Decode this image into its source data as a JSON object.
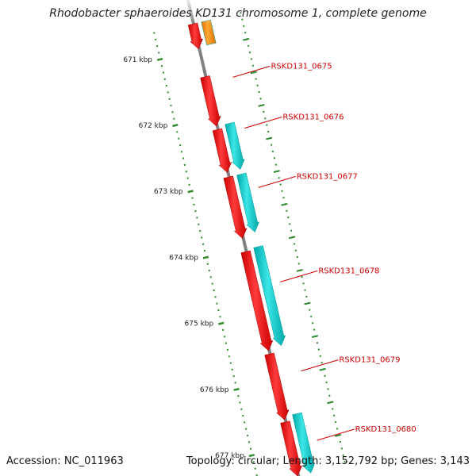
{
  "title": "Rhodobacter sphaeroides KD131 chromosome 1, complete genome",
  "footer": {
    "accession": "Accession: NC_011963",
    "summary": "Topology: circular; Length: 3,152,792 bp; Genes: 3,143"
  },
  "colors": {
    "backbone": "#808080",
    "forward_gene": "#00cccc",
    "reverse_gene": "#ff0000",
    "other_feature": "#ff8c00",
    "tick": "#2e8b2e",
    "label": "#cc0000"
  },
  "map": {
    "kbp_range": [
      670.6,
      677.45
    ],
    "ticks": [
      {
        "kbp": 671,
        "label": "671 kbp"
      },
      {
        "kbp": 672,
        "label": "672 kbp"
      },
      {
        "kbp": 673,
        "label": "673 kbp"
      },
      {
        "kbp": 674,
        "label": "674 kbp"
      },
      {
        "kbp": 675,
        "label": "675 kbp"
      },
      {
        "kbp": 676,
        "label": "676 kbp"
      },
      {
        "kbp": 677,
        "label": "677 kbp"
      }
    ],
    "genes": [
      {
        "id": "gene-a",
        "start_kbp": 670.6,
        "end_kbp": 670.98,
        "track": "reverse",
        "type": "cds"
      },
      {
        "id": "gene-b",
        "start_kbp": 670.6,
        "end_kbp": 670.95,
        "track": "forward",
        "type": "other"
      },
      {
        "id": "RSKD131_0675",
        "start_kbp": 671.4,
        "end_kbp": 672.15,
        "track": "reverse",
        "type": "cds"
      },
      {
        "id": "RSKD131_0676",
        "start_kbp": 672.2,
        "end_kbp": 672.85,
        "track": "reverse",
        "type": "cds"
      },
      {
        "id": "RSKD131_0676f",
        "start_kbp": 672.15,
        "end_kbp": 672.85,
        "track": "forward",
        "type": "cds"
      },
      {
        "id": "RSKD131_0677",
        "start_kbp": 672.92,
        "end_kbp": 673.85,
        "track": "reverse",
        "type": "cds"
      },
      {
        "id": "RSKD131_0677f",
        "start_kbp": 672.92,
        "end_kbp": 673.8,
        "track": "forward",
        "type": "cds"
      },
      {
        "id": "RSKD131_0678",
        "start_kbp": 674.05,
        "end_kbp": 675.55,
        "track": "reverse",
        "type": "cds"
      },
      {
        "id": "RSKD131_0678f",
        "start_kbp": 674.02,
        "end_kbp": 675.52,
        "track": "forward",
        "type": "cds"
      },
      {
        "id": "RSKD131_0679",
        "start_kbp": 675.6,
        "end_kbp": 676.6,
        "track": "reverse",
        "type": "cds"
      },
      {
        "id": "RSKD131_0680",
        "start_kbp": 676.63,
        "end_kbp": 677.45,
        "track": "reverse",
        "type": "cds"
      },
      {
        "id": "RSKD131_0680f",
        "start_kbp": 676.55,
        "end_kbp": 677.45,
        "track": "forward",
        "type": "cds"
      }
    ],
    "labels": [
      {
        "text": "RSKD131_0675",
        "kbp": 671.5
      },
      {
        "text": "RSKD131_0676",
        "kbp": 672.27
      },
      {
        "text": "RSKD131_0677",
        "kbp": 673.17
      },
      {
        "text": "RSKD131_0678",
        "kbp": 674.6
      },
      {
        "text": "RSKD131_0679",
        "kbp": 675.95
      },
      {
        "text": "RSKD131_0680",
        "kbp": 677.0
      }
    ]
  }
}
